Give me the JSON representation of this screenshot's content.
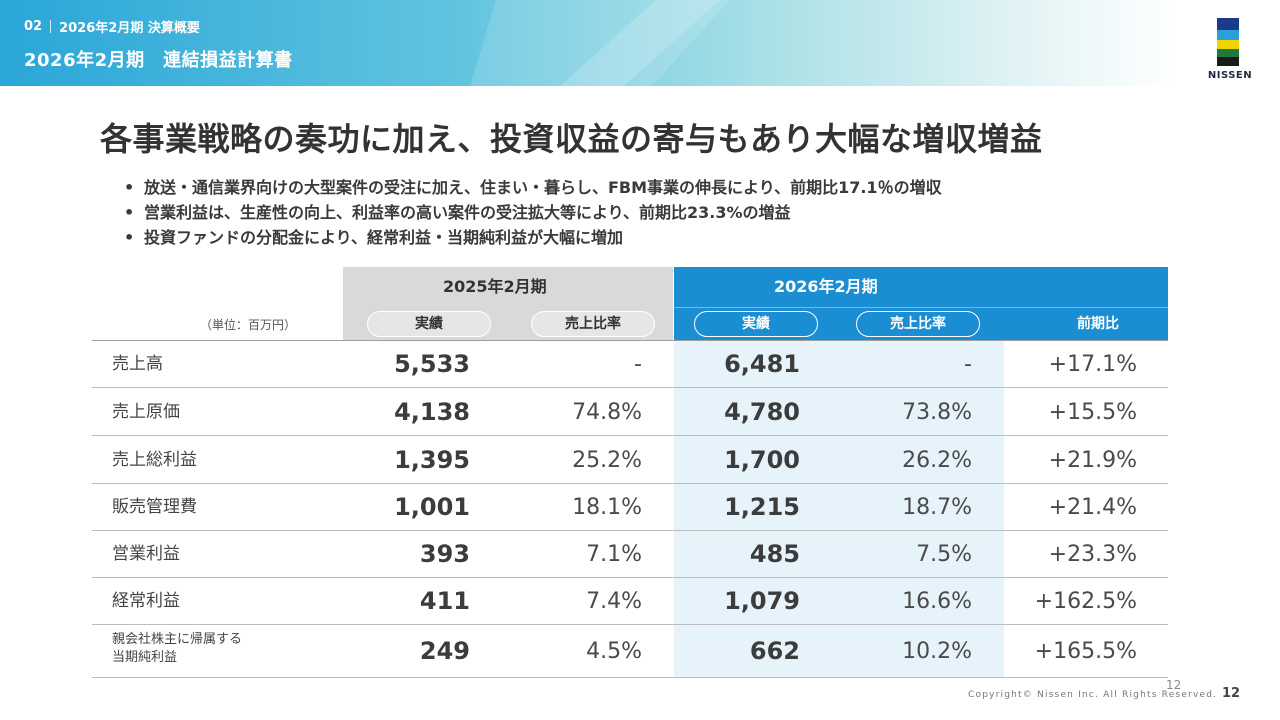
{
  "header": {
    "section_number": "02",
    "section_title": "2026年2月期 決算概要",
    "page_title": "2026年2月期　連結損益計算書"
  },
  "logo": {
    "text": "NISSEN",
    "colors": [
      "#1a3a8c",
      "#2a9fd8",
      "#f0d400",
      "#1f7a3a",
      "#1a1a1a"
    ]
  },
  "headline": "各事業戦略の奏功に加え、投資収益の寄与もあり大幅な増収増益",
  "bullets": [
    "放送・通信業界向けの大型案件の受注に加え、住まい・暮らし、FBM事業の伸長により、前期比17.1％の増収",
    "営業利益は、生産性の向上、利益率の高い案件の受注拡大等により、前期比23.3%の増益",
    "投資ファンドの分配金により、経常利益・当期純利益が大幅に増加"
  ],
  "table": {
    "unit": "（単位：百万円）",
    "period_2025": "2025年2月期",
    "period_2026": "2026年2月期",
    "col_actual": "実績",
    "col_ratio": "売上比率",
    "col_yoy": "前期比",
    "rows": [
      {
        "label": "売上高",
        "v25": "5,533",
        "p25": "-",
        "v26": "6,481",
        "p26": "-",
        "yoy": "+17.1%"
      },
      {
        "label": "売上原価",
        "v25": "4,138",
        "p25": "74.8%",
        "v26": "4,780",
        "p26": "73.8%",
        "yoy": "+15.5%"
      },
      {
        "label": "売上総利益",
        "v25": "1,395",
        "p25": "25.2%",
        "v26": "1,700",
        "p26": "26.2%",
        "yoy": "+21.9%"
      },
      {
        "label": "販売管理費",
        "v25": "1,001",
        "p25": "18.1%",
        "v26": "1,215",
        "p26": "18.7%",
        "yoy": "+21.4%"
      },
      {
        "label": "営業利益",
        "v25": "393",
        "p25": "7.1%",
        "v26": "485",
        "p26": "7.5%",
        "yoy": "+23.3%"
      },
      {
        "label": "経常利益",
        "v25": "411",
        "p25": "7.4%",
        "v26": "1,079",
        "p26": "16.6%",
        "yoy": "+162.5%"
      },
      {
        "label_line1": "親会社株主に帰属する",
        "label_line2": "当期純利益",
        "v25": "249",
        "p25": "4.5%",
        "v26": "662",
        "p26": "10.2%",
        "yoy": "+165.5%"
      }
    ]
  },
  "footer": {
    "page_small": "12",
    "copyright": "Copyright© Nissen Inc. All Rights Reserved.",
    "page": "12"
  }
}
